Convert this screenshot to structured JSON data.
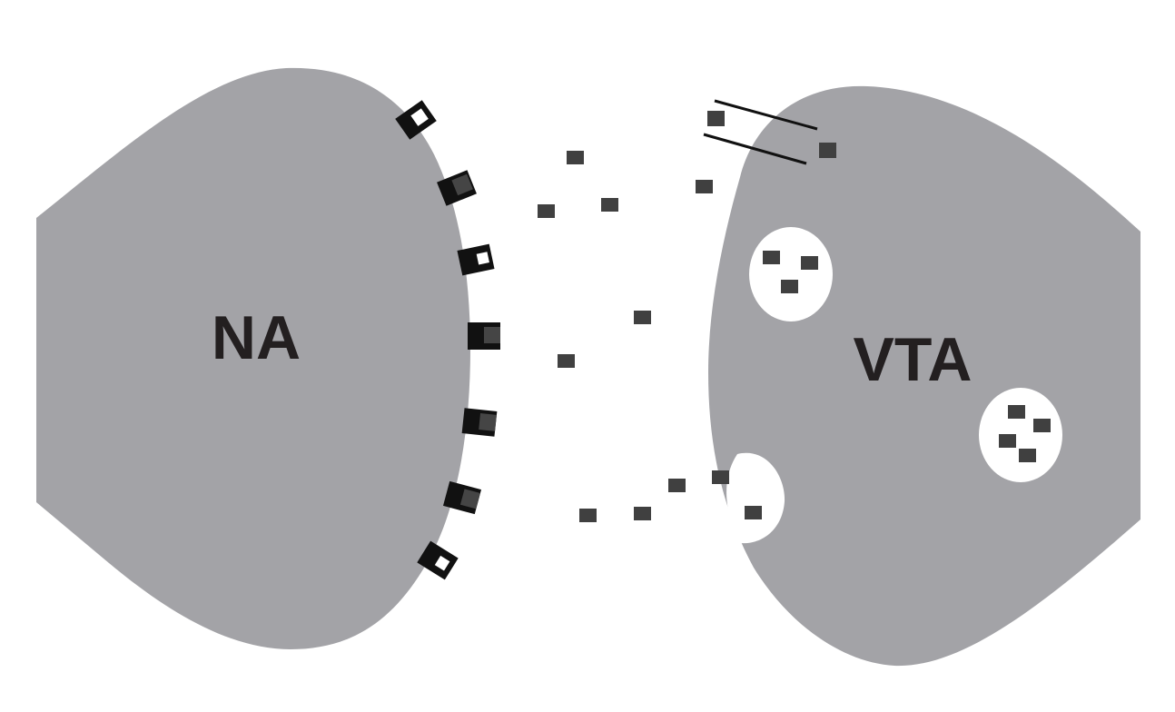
{
  "labels": {
    "left_region": "NA",
    "right_region": "VTA"
  },
  "colors": {
    "background": "#ffffff",
    "region_fill": "#a3a3a7",
    "label_text": "#231f20",
    "molecule": "#404040",
    "receptor_body": "#111111",
    "receptor_bound_core": "#454545",
    "vesicle": "#ffffff",
    "pipette_line": "#111111"
  },
  "legend": {
    "molecule_shape": "small dark square",
    "receptor_shape": "black cup-shaped receptor",
    "vesicle_shape": "white circle containing molecules"
  }
}
